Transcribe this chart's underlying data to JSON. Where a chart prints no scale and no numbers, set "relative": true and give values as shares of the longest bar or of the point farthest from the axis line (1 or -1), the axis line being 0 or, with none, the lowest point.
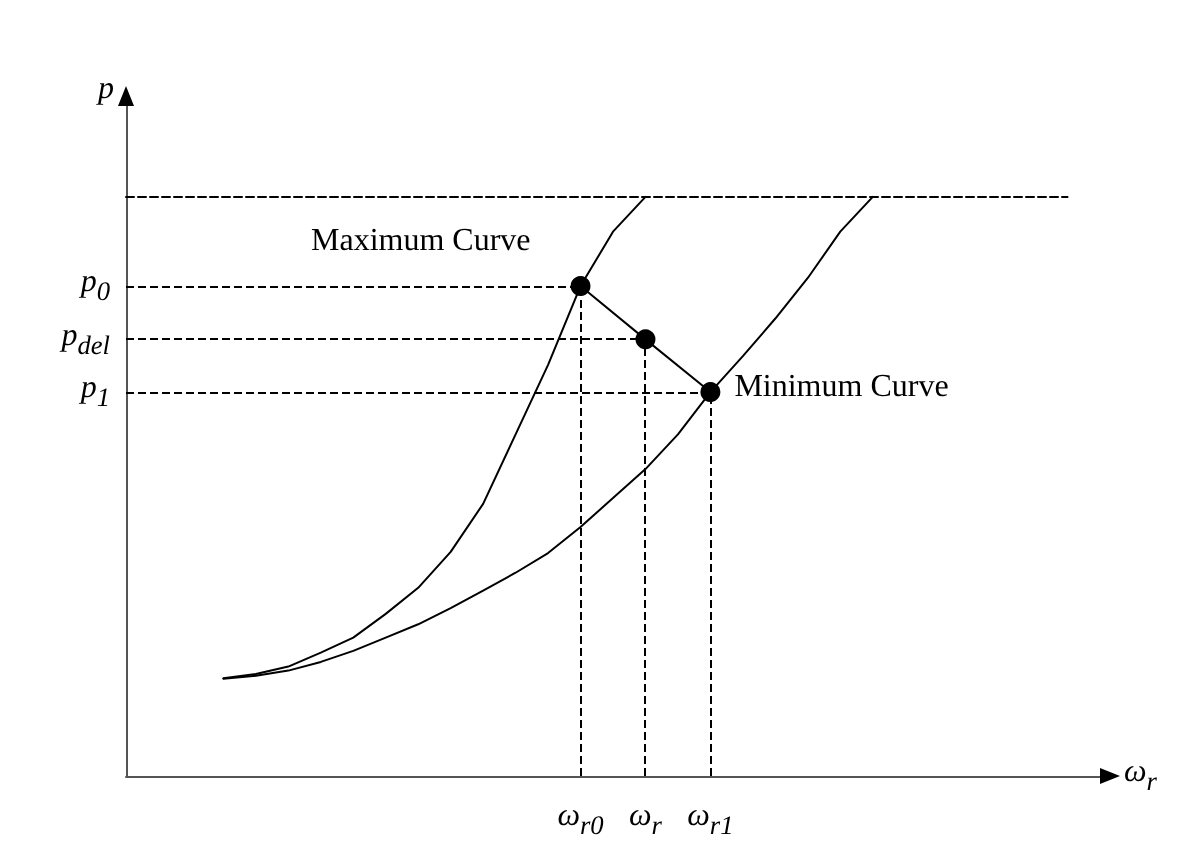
{
  "chart_data": {
    "type": "line",
    "relative": true,
    "xlabel": "ω$_{r}$",
    "ylabel": "p",
    "categories": [
      null,
      null,
      null,
      null,
      null,
      null,
      null,
      null,
      null,
      null,
      null,
      null,
      null,
      null,
      "ω$_{r0}$",
      null,
      "ω$_{r}$",
      null,
      "ω$_{r1}$",
      null,
      null,
      null,
      null,
      null,
      null,
      null,
      null,
      null,
      null,
      null,
      null
    ],
    "series": [
      {
        "name": "Maximum Curve",
        "color": "#000000",
        "marker": "none",
        "values": [
          null,
          null,
          null,
          0.169,
          0.176,
          0.189,
          0.213,
          0.239,
          0.28,
          0.325,
          0.387,
          0.47,
          0.59,
          0.71,
          0.846,
          0.94,
          1.0,
          null,
          null,
          null,
          null,
          null,
          null,
          null,
          null,
          null,
          null,
          null,
          null,
          null,
          null
        ]
      },
      {
        "name": "Minimum Curve",
        "color": "#000000",
        "marker": "none",
        "values": [
          null,
          null,
          null,
          0.168,
          0.173,
          0.182,
          0.197,
          0.216,
          0.239,
          0.262,
          0.29,
          0.32,
          0.351,
          0.385,
          0.43,
          0.48,
          0.53,
          0.59,
          0.663,
          0.725,
          0.79,
          0.86,
          0.94,
          1.0,
          null,
          null,
          null,
          null,
          null,
          null,
          null
        ]
      },
      {
        "color": "#000000",
        "marker": "none",
        "line_style": "dashed",
        "values": [
          1.0,
          1.0,
          1.0,
          1.0,
          1.0,
          1.0,
          1.0,
          1.0,
          1.0,
          1.0,
          1.0,
          1.0,
          1.0,
          1.0,
          1.0,
          1.0,
          1.0,
          1.0,
          1.0,
          1.0,
          1.0,
          1.0,
          1.0,
          1.0,
          1.0,
          1.0,
          1.0,
          1.0,
          1.0,
          1.0,
          null
        ]
      },
      {
        "color": "#000000",
        "marker": "circle",
        "values": [
          null,
          null,
          null,
          null,
          null,
          null,
          null,
          null,
          null,
          null,
          null,
          null,
          null,
          null,
          0.846,
          null,
          0.754,
          null,
          0.663,
          null,
          null,
          null,
          null,
          null,
          null,
          null,
          null,
          null,
          null,
          null,
          null
        ]
      }
    ],
    "annotations": [
      "p$_{0}$",
      "p$_{del}$",
      "p$_{1}$"
    ]
  }
}
